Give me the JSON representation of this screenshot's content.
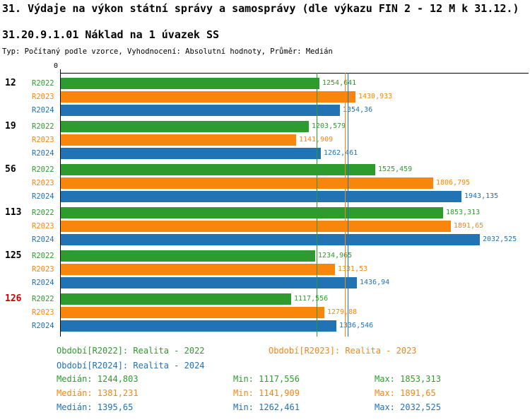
{
  "header": {
    "title": "31. Výdaje na výkon státní správy a samosprávy (dle výkazu FIN 2 - 12 M k 31.12.)",
    "subtitle": "31.20.9.1.01 Náklad na 1 úvazek SS",
    "meta": "Typ: Počítaný podle vzorce, Vyhodnocení: Absolutní hodnoty, Průměr: Medián"
  },
  "chart_data": {
    "type": "bar",
    "orientation": "horizontal",
    "grid": false,
    "x_axis": {
      "origin_label": "0",
      "xlim": [
        0,
        2280
      ],
      "position": "top"
    },
    "series": [
      {
        "name": "R2022",
        "label": "Realita - 2022",
        "color": "#2E9B2E"
      },
      {
        "name": "R2023",
        "label": "Realita - 2023",
        "color": "#F8860D"
      },
      {
        "name": "R2024",
        "label": "Realita - 2024",
        "color": "#2173B4"
      }
    ],
    "groups": [
      {
        "label": "12",
        "label_color": "#000000",
        "values": [
          1254.641,
          1430.933,
          1354.36
        ],
        "value_labels": [
          "1254,641",
          "1430,933",
          "1354,36"
        ]
      },
      {
        "label": "19",
        "label_color": "#000000",
        "values": [
          1203.579,
          1141.909,
          1262.461
        ],
        "value_labels": [
          "1203,579",
          "1141,909",
          "1262,461"
        ]
      },
      {
        "label": "56",
        "label_color": "#000000",
        "values": [
          1525.459,
          1806.795,
          1943.135
        ],
        "value_labels": [
          "1525,459",
          "1806,795",
          "1943,135"
        ]
      },
      {
        "label": "113",
        "label_color": "#000000",
        "values": [
          1853.313,
          1891.65,
          2032.525
        ],
        "value_labels": [
          "1853,313",
          "1891,65",
          "2032,525"
        ]
      },
      {
        "label": "125",
        "label_color": "#000000",
        "values": [
          1234.965,
          1331.53,
          1436.94
        ],
        "value_labels": [
          "1234,965",
          "1331,53",
          "1436,94"
        ]
      },
      {
        "label": "126",
        "label_color": "#CC0000",
        "values": [
          1117.556,
          1279.88,
          1336.546
        ],
        "value_labels": [
          "1117,556",
          "1279,88",
          "1336,546"
        ]
      }
    ],
    "median_lines": [
      {
        "series": "R2022",
        "value": 1244.803,
        "color": "#2E9B2E"
      },
      {
        "series": "R2023",
        "value": 1381.231,
        "color": "#F8860D"
      },
      {
        "series": "R2024",
        "value": 1395.65,
        "color": "#2173B4"
      }
    ]
  },
  "legend": [
    {
      "label": "Období[R2022]: Realita - 2022",
      "color": "#2E9B2E"
    },
    {
      "label": "Období[R2023]: Realita - 2023",
      "color": "#F8860D"
    },
    {
      "label": "Období[R2024]: Realita - 2024",
      "color": "#2173B4"
    }
  ],
  "stats": [
    {
      "median": "Medián: 1244,803",
      "min": "Min: 1117,556",
      "max": "Max: 1853,313",
      "color": "#2E9B2E"
    },
    {
      "median": "Medián: 1381,231",
      "min": "Min: 1141,909",
      "max": "Max: 1891,65",
      "color": "#F8860D"
    },
    {
      "median": "Medián: 1395,65",
      "min": "Min: 1262,461",
      "max": "Max: 2032,525",
      "color": "#2173B4"
    }
  ]
}
